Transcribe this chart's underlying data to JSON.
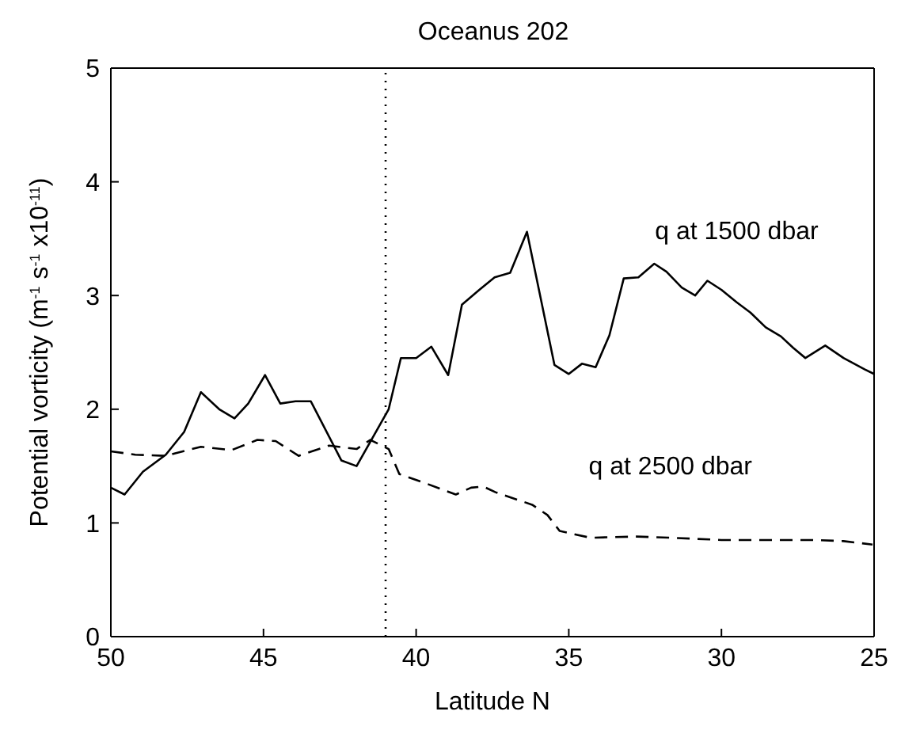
{
  "chart_data": {
    "type": "line",
    "title": "Oceanus 202",
    "xlabel": "Latitude N",
    "ylabel": "Potential vorticity (m$^{-1}$ s$^{-1}$ x10$^{-11}$)",
    "xlim": [
      50,
      25
    ],
    "ylim": [
      0,
      5
    ],
    "xticks": [
      50,
      45,
      40,
      35,
      30,
      25
    ],
    "yticks": [
      0,
      1,
      2,
      3,
      4,
      5
    ],
    "grid": false,
    "legend": false,
    "marker": "none",
    "series": [
      {
        "name": "q at 1500 dbar",
        "color": "#000000",
        "line_style": "solid",
        "x": [
          50,
          49.55,
          48.95,
          48.2,
          47.6,
          47.05,
          46.45,
          45.95,
          45.5,
          44.95,
          44.45,
          43.95,
          43.45,
          42.45,
          41.95,
          40.9,
          40.5,
          40,
          39.5,
          38.95,
          38.5,
          37.93,
          37.43,
          36.92,
          36.37,
          35.47,
          35,
          34.57,
          34.12,
          33.67,
          33.2,
          32.72,
          32.2,
          31.8,
          31.3,
          30.86,
          30.46,
          30,
          29.5,
          29.05,
          28.55,
          28.05,
          27.65,
          27.25,
          26.6,
          26,
          25.3,
          25
        ],
        "values": [
          1.31,
          1.25,
          1.45,
          1.6,
          1.8,
          2.15,
          2,
          1.92,
          2.05,
          2.3,
          2.05,
          2.07,
          2.07,
          1.55,
          1.5,
          2,
          2.45,
          2.45,
          2.55,
          2.3,
          2.92,
          3.05,
          3.16,
          3.2,
          3.56,
          2.39,
          2.31,
          2.4,
          2.37,
          2.65,
          3.15,
          3.16,
          3.28,
          3.21,
          3.07,
          3,
          3.13,
          3.05,
          2.94,
          2.85,
          2.72,
          2.64,
          2.54,
          2.45,
          2.56,
          2.45,
          2.35,
          2.31
        ]
      },
      {
        "name": "q at 2500 dbar",
        "color": "#000000",
        "line_style": "dashed",
        "x": [
          50,
          49.2,
          48.2,
          47.05,
          46.05,
          45.2,
          44.6,
          43.85,
          42.85,
          41.95,
          41.5,
          40.9,
          40.55,
          39.7,
          38.7,
          38.2,
          37.8,
          37.4,
          36.2,
          35.7,
          35.3,
          34.3,
          32.77,
          31.67,
          30,
          28.3,
          27,
          26,
          25.05
        ],
        "values": [
          1.63,
          1.6,
          1.59,
          1.67,
          1.64,
          1.73,
          1.72,
          1.59,
          1.68,
          1.65,
          1.73,
          1.65,
          1.43,
          1.35,
          1.25,
          1.31,
          1.32,
          1.27,
          1.16,
          1.07,
          0.93,
          0.87,
          0.88,
          0.87,
          0.85,
          0.85,
          0.85,
          0.84,
          0.81
        ]
      }
    ],
    "ref_lines": [
      {
        "axis": "x",
        "value": 41,
        "line_style": "dotted",
        "color": "#000000"
      }
    ]
  }
}
